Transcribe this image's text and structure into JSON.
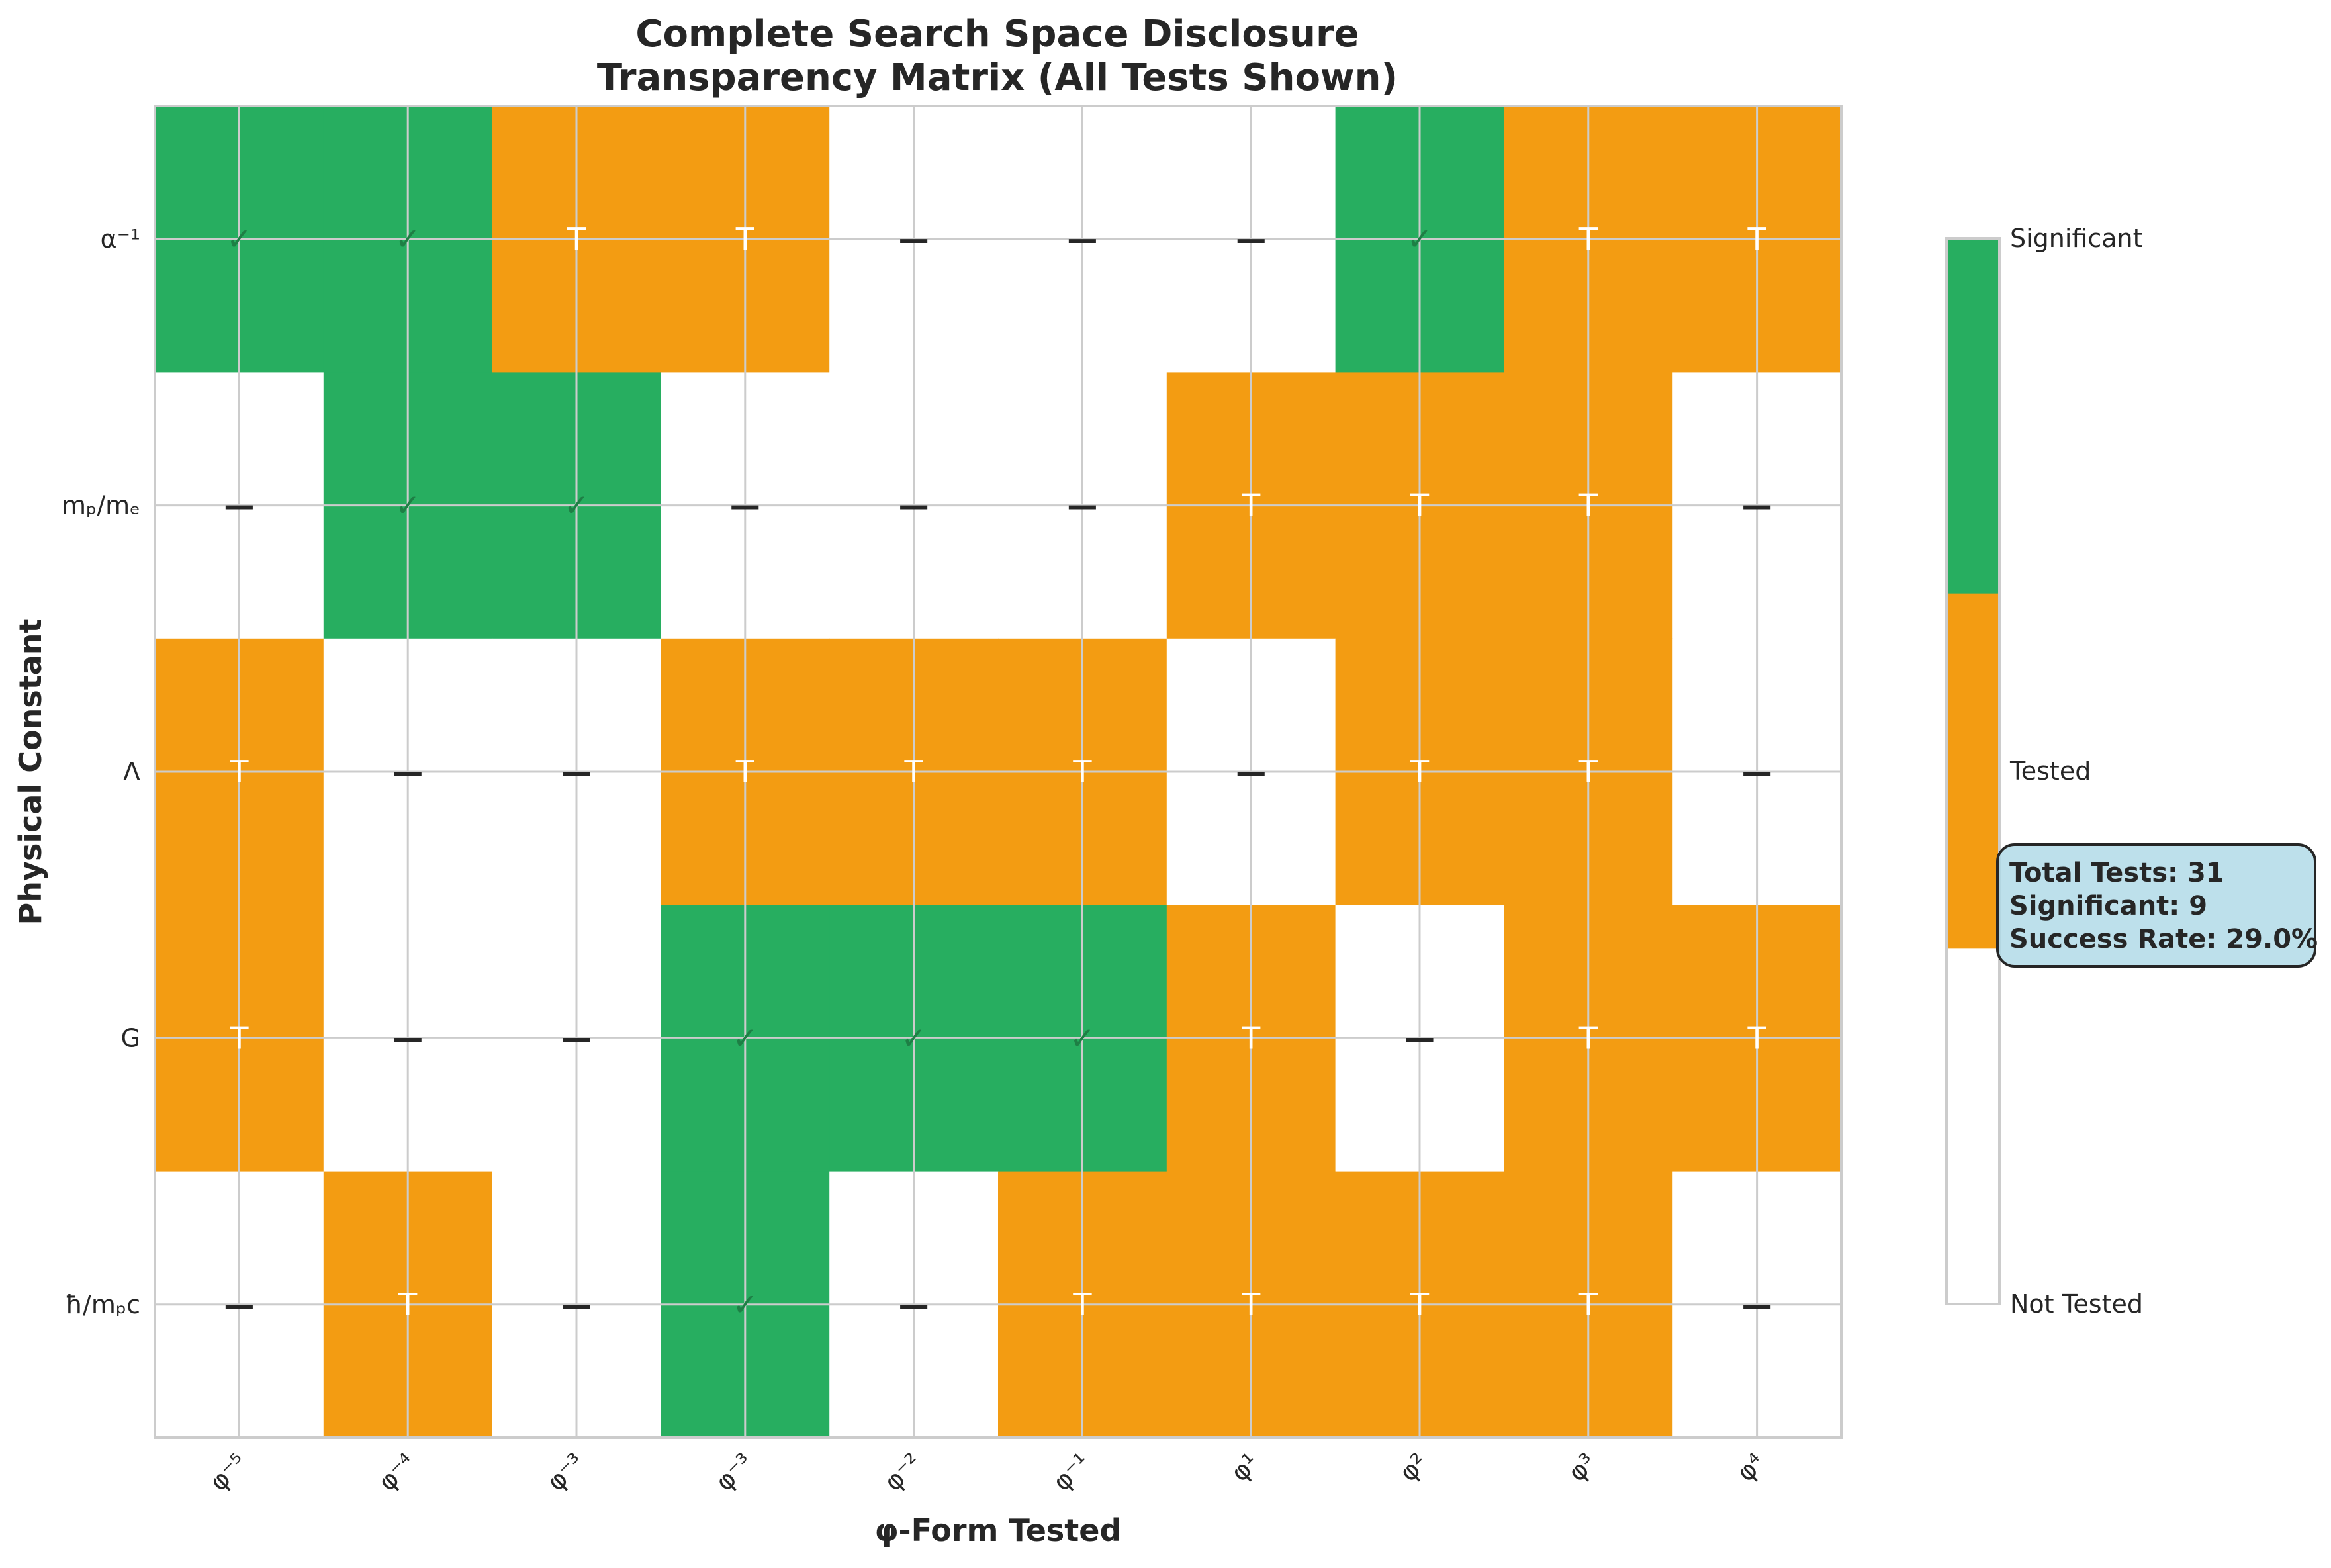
{
  "chart_data": {
    "type": "heatmap",
    "title": [
      "Complete Search Space Disclosure",
      "Transparency Matrix (All Tests Shown)"
    ],
    "xlabel": "φ-Form Tested",
    "ylabel": "Physical Constant",
    "x_categories": [
      "φ⁻⁵",
      "φ⁻⁴",
      "φ⁻³",
      "φ⁻³",
      "φ⁻²",
      "φ⁻¹",
      "φ¹",
      "φ²",
      "φ³",
      "φ⁴"
    ],
    "y_categories": [
      "α⁻¹",
      "mₚ/mₑ",
      "Λ",
      "G",
      "ħ/mₚc"
    ],
    "status_legend": [
      "Not Tested",
      "Tested",
      "Significant"
    ],
    "status_colors": [
      "#ffffff",
      "#f39c12",
      "#27ae60"
    ],
    "status_symbols": [
      "—",
      "T",
      "✓"
    ],
    "matrix": [
      [
        2,
        2,
        1,
        1,
        0,
        0,
        0,
        2,
        1,
        1
      ],
      [
        0,
        2,
        2,
        0,
        0,
        0,
        1,
        1,
        1,
        0
      ],
      [
        1,
        0,
        0,
        1,
        1,
        1,
        0,
        1,
        1,
        0
      ],
      [
        1,
        0,
        0,
        2,
        2,
        2,
        1,
        0,
        1,
        1
      ],
      [
        0,
        1,
        0,
        2,
        0,
        1,
        1,
        1,
        1,
        0
      ]
    ],
    "grid": true,
    "colorbar": {
      "ticks": [
        "Not Tested",
        "Tested",
        "Significant"
      ]
    },
    "summary": {
      "total_tests": "Total Tests: 31",
      "significant": "Significant: 9",
      "success_rate": "Success Rate: 29.0%"
    }
  }
}
